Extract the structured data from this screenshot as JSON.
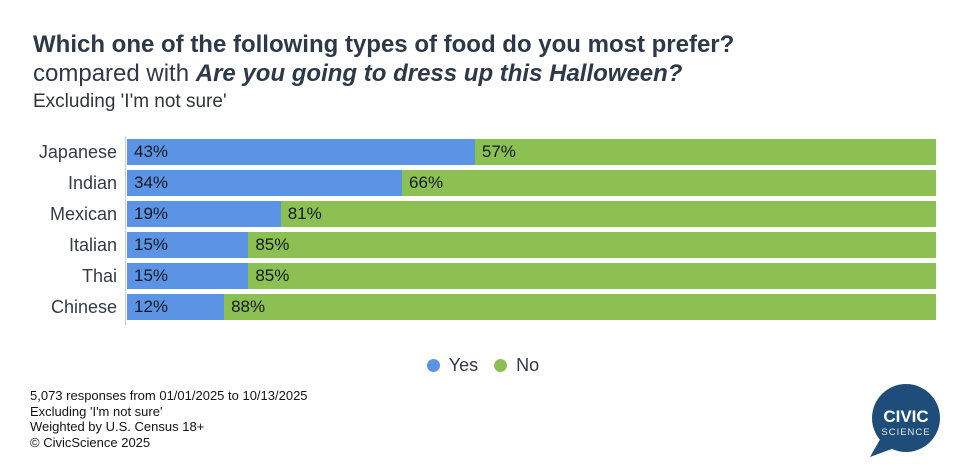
{
  "chart_data": {
    "type": "bar",
    "orientation": "horizontal",
    "stacked": true,
    "title_line1": "Which one of the following types of food do you most prefer?",
    "title_line2_prefix": "compared with ",
    "title_line2_emphasis": "Are you going to dress up this Halloween?",
    "subtitle": "Excluding 'I'm not sure'",
    "categories": [
      "Japanese",
      "Indian",
      "Mexican",
      "Italian",
      "Thai",
      "Chinese"
    ],
    "series": [
      {
        "name": "Yes",
        "color": "#5B93E5",
        "values": [
          43,
          34,
          19,
          15,
          15,
          12
        ]
      },
      {
        "name": "No",
        "color": "#8DC053",
        "values": [
          57,
          66,
          81,
          85,
          85,
          88
        ]
      }
    ],
    "value_suffix": "%",
    "xlim": [
      0,
      100
    ],
    "grid": false,
    "legend_position": "bottom-center"
  },
  "footer": {
    "lines": [
      "5,073 responses from 01/01/2025 to 10/13/2025",
      "Excluding 'I'm not sure'",
      "Weighted by U.S. Census 18+",
      "© CivicScience 2025"
    ]
  },
  "logo": {
    "line1": "CIVIC",
    "line2": "SCIENCE",
    "bubble_color": "#1E4D79"
  },
  "colors": {
    "title_text": "#2D3948",
    "category_label": "#333B46",
    "bar_value_label": "#14181D",
    "axis_line": "#CCCCCC",
    "background": "#FFFFFF"
  }
}
